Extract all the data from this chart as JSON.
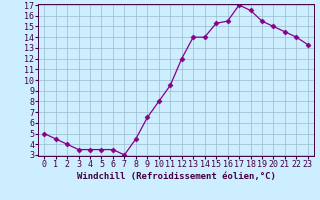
{
  "x": [
    0,
    1,
    2,
    3,
    4,
    5,
    6,
    7,
    8,
    9,
    10,
    11,
    12,
    13,
    14,
    15,
    16,
    17,
    18,
    19,
    20,
    21,
    22,
    23
  ],
  "y": [
    5.0,
    4.5,
    4.0,
    3.5,
    3.5,
    3.5,
    3.5,
    3.0,
    4.5,
    6.5,
    8.0,
    9.5,
    12.0,
    14.0,
    14.0,
    15.3,
    15.5,
    17.0,
    16.5,
    15.5,
    15.0,
    14.5,
    14.0,
    13.3
  ],
  "xlabel": "Windchill (Refroidissement éolien,°C)",
  "xlim": [
    -0.5,
    23.5
  ],
  "ylim": [
    3.0,
    17.0
  ],
  "yticks": [
    3,
    4,
    5,
    6,
    7,
    8,
    9,
    10,
    11,
    12,
    13,
    14,
    15,
    16,
    17
  ],
  "xticks": [
    0,
    1,
    2,
    3,
    4,
    5,
    6,
    7,
    8,
    9,
    10,
    11,
    12,
    13,
    14,
    15,
    16,
    17,
    18,
    19,
    20,
    21,
    22,
    23
  ],
  "line_color": "#880088",
  "marker": "D",
  "marker_size": 2.5,
  "bg_color": "#cceeff",
  "grid_color": "#99bbcc",
  "axes_color": "#440044",
  "label_fontsize": 6.5,
  "tick_fontsize": 6.0,
  "linewidth": 0.9
}
